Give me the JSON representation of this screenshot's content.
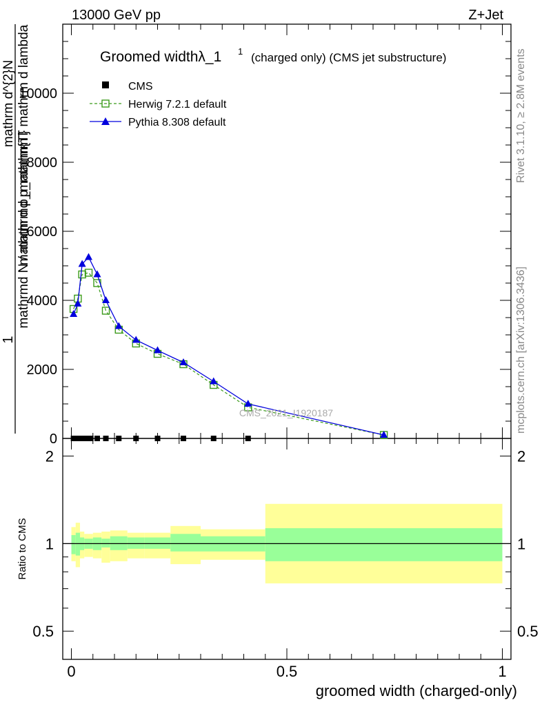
{
  "header": {
    "left": "13000 GeV pp",
    "right": "Z+Jet"
  },
  "side": {
    "rivet": "Rivet 3.1.10, ≥ 2.8M events",
    "mcplots": "mcplots.cern.ch [arXiv:1306.3436]"
  },
  "watermark": "CMS_2021_I1920187",
  "ratio_ylabel": "Ratio to CMS",
  "chart_data": [
    {
      "type": "line",
      "title": "Groomed widthλ_1",
      "title_sup": "1",
      "title_suffix": "(charged only) (CMS jet substructure)",
      "ylabel_num": "1",
      "ylabel_den": "mathrmd N / mathrmd p_mathrmT",
      "ylabel_num2": "mathrm d^{2}N",
      "ylabel_den2": "mathrm d p_mathrm{T} mathrm d lambda",
      "xlabel": "groomed width (charged-only)",
      "xlim": [
        -0.02,
        1.02
      ],
      "ylim": [
        0,
        12000
      ],
      "yticks": [
        0,
        2000,
        4000,
        6000,
        8000,
        10000
      ],
      "ytick_labels": [
        "0",
        "2000",
        "4000",
        "6000",
        "8000",
        "10000"
      ],
      "legend_position": "top-left",
      "series": [
        {
          "name": "CMS",
          "color": "#000000",
          "x": [
            0.005,
            0.015,
            0.025,
            0.035,
            0.045,
            0.06,
            0.08,
            0.11,
            0.15,
            0.2,
            0.26,
            0.33,
            0.41
          ],
          "values": [
            0,
            0,
            0,
            0,
            0,
            0,
            0,
            0,
            0,
            0,
            0,
            0,
            0
          ]
        },
        {
          "name": "Herwig 7.2.1 default",
          "color": "#3a9a1a",
          "x": [
            0.005,
            0.015,
            0.025,
            0.04,
            0.06,
            0.08,
            0.11,
            0.15,
            0.2,
            0.26,
            0.33,
            0.41,
            0.725
          ],
          "values": [
            3750,
            4050,
            4750,
            4800,
            4500,
            3700,
            3150,
            2750,
            2450,
            2150,
            1550,
            900,
            100
          ]
        },
        {
          "name": "Pythia 8.308 default",
          "color": "#0000dd",
          "x": [
            0.005,
            0.015,
            0.025,
            0.04,
            0.06,
            0.08,
            0.11,
            0.15,
            0.2,
            0.26,
            0.33,
            0.41,
            0.725
          ],
          "values": [
            3600,
            3900,
            5050,
            5250,
            4750,
            4000,
            3250,
            2850,
            2550,
            2200,
            1650,
            1000,
            100
          ]
        }
      ]
    },
    {
      "type": "area",
      "ylabel": "Ratio to CMS",
      "ylim": [
        0.4,
        2.3
      ],
      "log_y": true,
      "yticks": [
        0.5,
        1,
        2
      ],
      "ytick_labels": [
        "0.5",
        "1",
        "2"
      ],
      "xticks": [
        0,
        0.5,
        1
      ],
      "xtick_labels": [
        "0",
        "0.5",
        "1"
      ],
      "reference_line": 1,
      "bins": [
        0,
        0.01,
        0.02,
        0.03,
        0.05,
        0.07,
        0.09,
        0.13,
        0.17,
        0.23,
        0.3,
        0.36,
        0.45,
        1.0
      ],
      "stat_band": {
        "color": "#99ff99",
        "lower": [
          0.92,
          0.91,
          0.95,
          0.96,
          0.95,
          0.97,
          0.95,
          0.96,
          0.96,
          0.94,
          0.94,
          0.94,
          0.87
        ],
        "upper": [
          1.07,
          1.09,
          1.05,
          1.04,
          1.05,
          1.04,
          1.06,
          1.05,
          1.05,
          1.08,
          1.06,
          1.06,
          1.13
        ]
      },
      "syst_band": {
        "color": "#ffff99",
        "lower": [
          0.87,
          0.83,
          0.89,
          0.9,
          0.89,
          0.86,
          0.87,
          0.89,
          0.89,
          0.85,
          0.88,
          0.88,
          0.73
        ],
        "upper": [
          1.14,
          1.18,
          1.1,
          1.08,
          1.09,
          1.1,
          1.11,
          1.09,
          1.09,
          1.15,
          1.12,
          1.12,
          1.37
        ]
      }
    }
  ]
}
